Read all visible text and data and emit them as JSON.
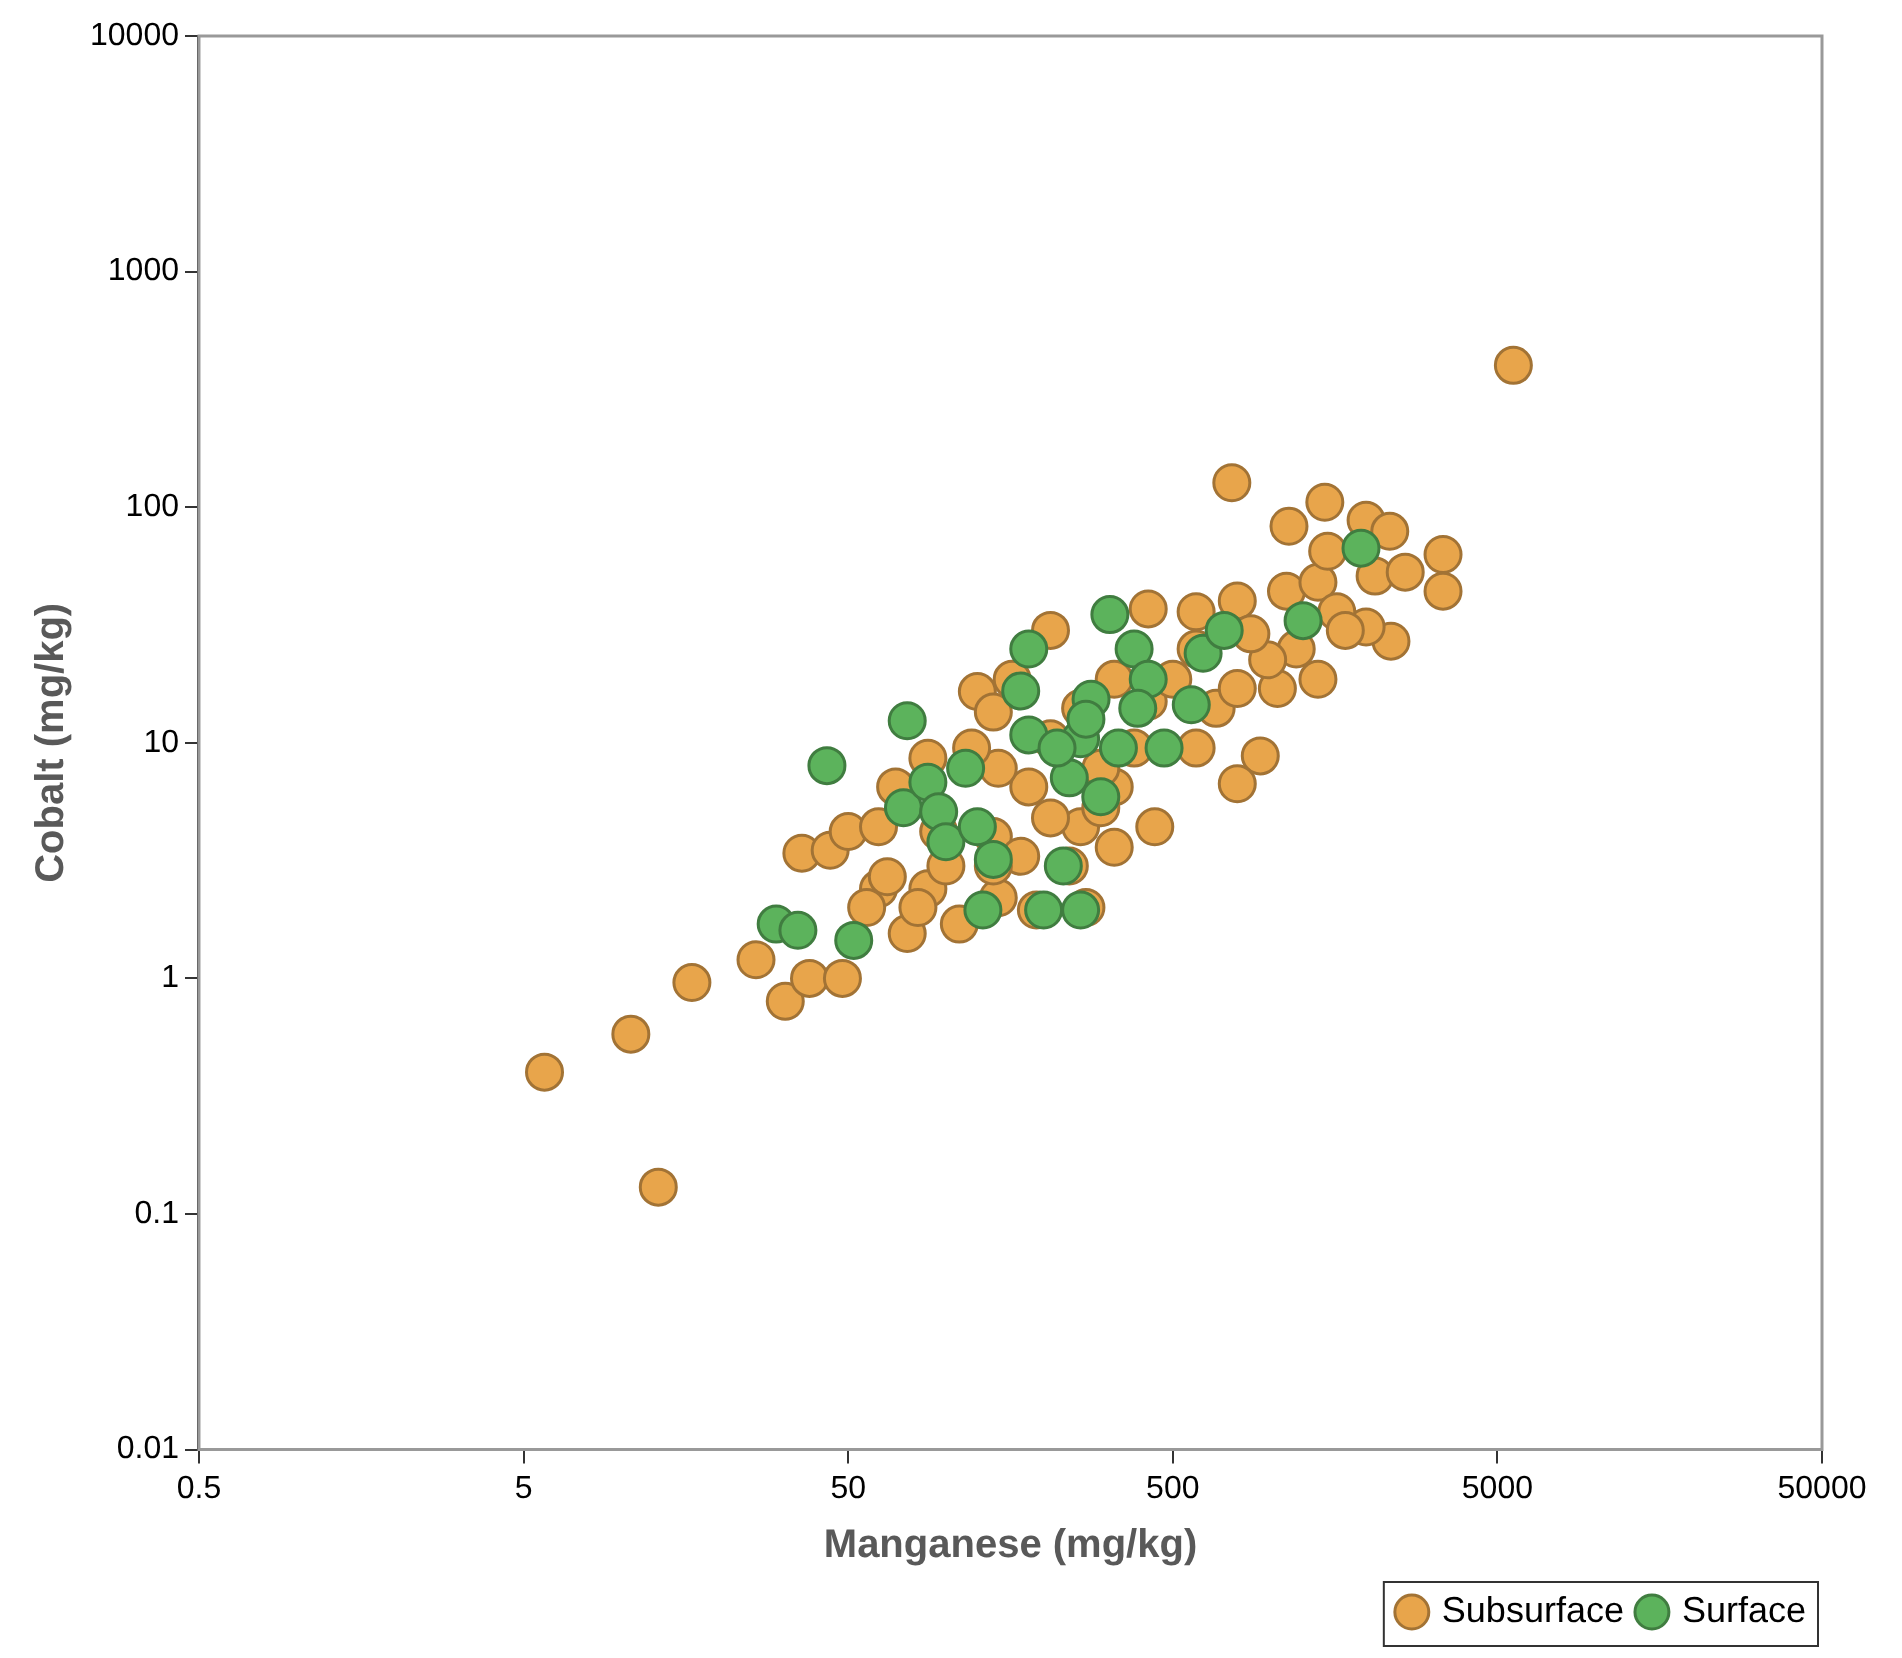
{
  "chart_data": {
    "type": "scatter",
    "xlabel": "Manganese (mg/kg)",
    "ylabel": "Cobalt (mg/kg)",
    "log": "xy",
    "xlim": [
      0.5,
      50000
    ],
    "xticks": [
      0.5,
      5,
      50,
      500,
      5000,
      50000
    ],
    "ylim": [
      0.01,
      10000
    ],
    "yticks": [
      0.01,
      0.1,
      1,
      10,
      100,
      1000,
      10000
    ],
    "grid": false,
    "legend": "bottom right",
    "marker": "circle",
    "series": [
      {
        "name": "Subsurface",
        "color": "#e8a54b",
        "x": [
          5.8,
          10.7,
          13,
          16.5,
          26,
          32,
          38,
          48,
          36,
          44,
          50,
          62,
          76,
          88,
          95,
          110,
          125,
          140,
          190,
          210,
          270,
          420,
          760,
          1140,
          1470,
          1970,
          2330,
          3400,
          3400,
          2350,
          1970,
          5600,
          930,
          790,
          590,
          790,
          1120,
          1400,
          1600,
          1200,
          1050,
          680,
          590,
          380,
          330,
          260,
          180,
          145,
          120,
          88,
          70,
          62,
          100,
          140,
          170,
          210,
          300,
          420,
          330,
          260,
          210,
          160,
          500,
          300,
          440,
          145,
          82,
          66,
          57,
          790,
          980,
          1400,
          1700,
          2100,
          1500,
          2600,
          590,
          870,
          140,
          240,
          330
        ],
        "values": [
          0.4,
          0.58,
          0.13,
          0.96,
          1.2,
          0.8,
          1.0,
          1.0,
          3.4,
          3.5,
          4.2,
          2.4,
          1.55,
          2.4,
          4.2,
          1.7,
          16.5,
          13.5,
          1.95,
          30,
          2.0,
          37,
          127,
          83,
          105,
          88,
          79,
          63,
          44,
          27,
          31,
          400,
          8.8,
          6.7,
          25,
          40,
          44,
          48,
          36,
          25,
          17,
          14,
          9.5,
          9.5,
          6.5,
          4.4,
          6.5,
          7.8,
          9.5,
          8.6,
          6.5,
          4.4,
          3.0,
          4.0,
          3.3,
          4.8,
          7.8,
          15,
          18.6,
          14,
          10.4,
          18.6,
          18.6,
          5.3,
          4.4,
          2.2,
          2.0,
          2.7,
          2.0,
          17,
          22.5,
          18.6,
          30,
          51,
          65,
          53,
          36,
          29,
          3.0,
          3.0,
          3.6
        ]
      },
      {
        "name": "Surface",
        "color": "#5cb35c",
        "x": [
          30,
          35,
          43,
          52,
          76,
          74,
          88,
          95,
          115,
          100,
          125,
          130,
          140,
          180,
          170,
          180,
          200,
          230,
          260,
          240,
          260,
          280,
          320,
          300,
          380,
          420,
          390,
          470,
          570,
          620,
          720,
          1260,
          1900,
          220,
          270,
          340
        ],
        "values": [
          1.7,
          1.6,
          8,
          1.45,
          12.4,
          5.3,
          6.8,
          5.1,
          7.8,
          3.8,
          4.4,
          1.95,
          3.2,
          10.8,
          16.6,
          25,
          1.95,
          3.0,
          1.95,
          7.1,
          10.4,
          15.3,
          35,
          5.9,
          25,
          18.6,
          14,
          9.5,
          14.5,
          24,
          30,
          33,
          67,
          9.5,
          12.6,
          9.5
        ]
      }
    ]
  }
}
